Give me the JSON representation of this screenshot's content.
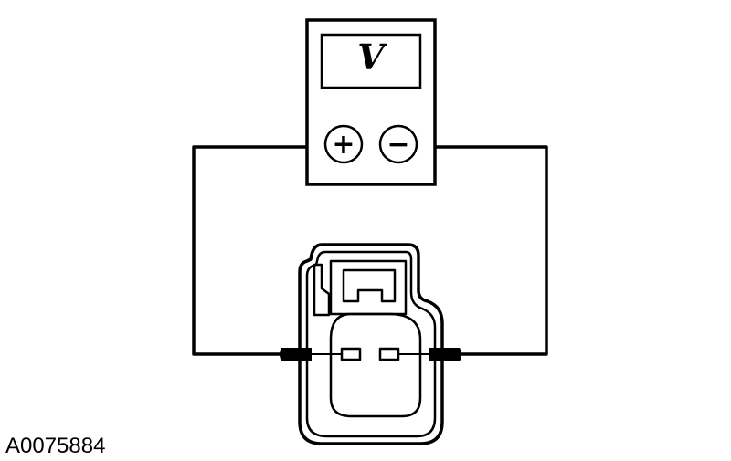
{
  "meter": {
    "display_symbol": "V",
    "positive_terminal": "+",
    "negative_terminal": "−"
  },
  "figure_id": "A0075884"
}
